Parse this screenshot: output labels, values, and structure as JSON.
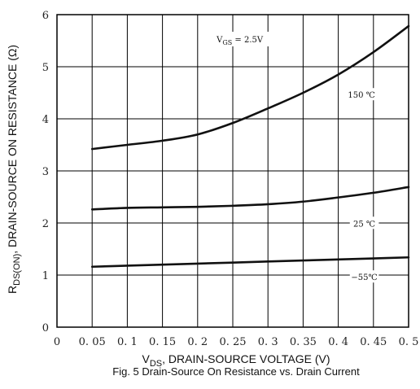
{
  "chart_data": {
    "type": "line",
    "xlabel": {
      "main": "V",
      "sub": "DS",
      "rest": ", DRAIN-SOURCE VOLTAGE (V)"
    },
    "ylabel": {
      "main": "R",
      "sub": "DS(ON)",
      "rest": ", DRAIN-SOURCE ON RESISTANCE (Ω)"
    },
    "caption": "Fig. 5  Drain-Source On Resistance vs. Drain Current",
    "xlim": [
      0,
      0.5
    ],
    "ylim": [
      0,
      6
    ],
    "x_ticks": [
      {
        "value": 0,
        "label": "0"
      },
      {
        "value": 0.05,
        "label": "0. 05"
      },
      {
        "value": 0.1,
        "label": "0. 1"
      },
      {
        "value": 0.15,
        "label": "0. 15"
      },
      {
        "value": 0.2,
        "label": "0. 2"
      },
      {
        "value": 0.25,
        "label": "0. 25"
      },
      {
        "value": 0.3,
        "label": "0. 3"
      },
      {
        "value": 0.35,
        "label": "0. 35"
      },
      {
        "value": 0.4,
        "label": "0. 4"
      },
      {
        "value": 0.45,
        "label": "0. 45"
      },
      {
        "value": 0.5,
        "label": "0. 5"
      }
    ],
    "y_ticks": [
      {
        "value": 0,
        "label": "0"
      },
      {
        "value": 1,
        "label": "1"
      },
      {
        "value": 2,
        "label": "2"
      },
      {
        "value": 3,
        "label": "3"
      },
      {
        "value": 4,
        "label": "4"
      },
      {
        "value": 5,
        "label": "5"
      },
      {
        "value": 6,
        "label": "6"
      }
    ],
    "grid": true,
    "annotations": [
      {
        "parts": [
          "V",
          "GS",
          " = 2.5V"
        ],
        "x": 0.26,
        "y": 5.5
      },
      {
        "text": "150 ℃",
        "x": 0.433,
        "y": 4.45
      },
      {
        "text": "25 ℃",
        "x": 0.437,
        "y": 1.98
      },
      {
        "text": "−55℃",
        "x": 0.437,
        "y": 0.95
      }
    ],
    "series": [
      {
        "label_ref": "150 ℃",
        "x": [
          0.05,
          0.1,
          0.15,
          0.2,
          0.25,
          0.3,
          0.35,
          0.4,
          0.45,
          0.5
        ],
        "y": [
          3.42,
          3.5,
          3.58,
          3.7,
          3.92,
          4.2,
          4.5,
          4.85,
          5.28,
          5.78
        ]
      },
      {
        "label_ref": "25 ℃",
        "x": [
          0.05,
          0.1,
          0.15,
          0.2,
          0.25,
          0.3,
          0.35,
          0.4,
          0.45,
          0.5
        ],
        "y": [
          2.26,
          2.29,
          2.3,
          2.31,
          2.33,
          2.36,
          2.41,
          2.49,
          2.58,
          2.69
        ]
      },
      {
        "label_ref": "−55℃",
        "x": [
          0.05,
          0.1,
          0.15,
          0.2,
          0.25,
          0.3,
          0.35,
          0.4,
          0.45,
          0.5
        ],
        "y": [
          1.16,
          1.18,
          1.2,
          1.22,
          1.24,
          1.26,
          1.28,
          1.3,
          1.32,
          1.34
        ]
      }
    ]
  }
}
